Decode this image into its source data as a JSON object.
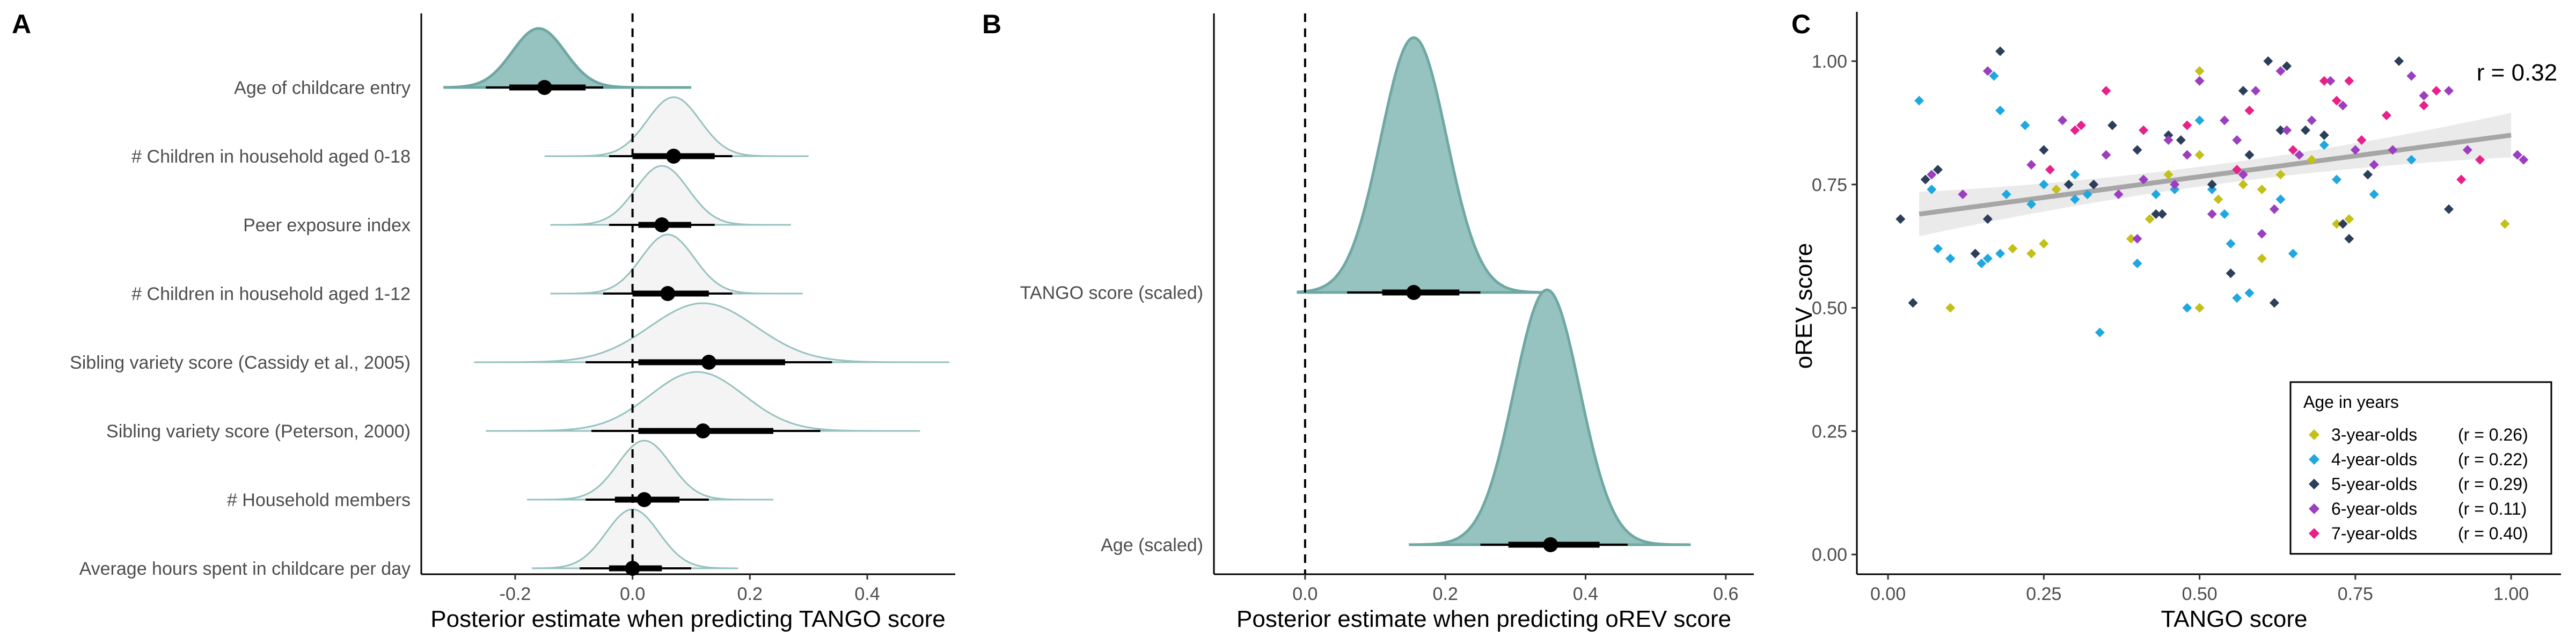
{
  "chart_data": [
    {
      "panel": "A",
      "type": "density-interval",
      "xlabel": "Posterior estimate when predicting TANGO score",
      "xlim": [
        -0.36,
        0.55
      ],
      "xticks": [
        -0.2,
        0.0,
        0.2,
        0.4
      ],
      "xtick_labels": [
        "-0.2",
        "0.0",
        "0.2",
        "0.4"
      ],
      "reference_line": 0,
      "rows": [
        {
          "label": "Age of childcare entry",
          "mean": -0.16,
          "sd": 0.045,
          "point": -0.15,
          "q66": [
            -0.21,
            -0.08
          ],
          "q95": [
            -0.25,
            -0.05
          ],
          "x_range": [
            -0.32,
            0.1
          ],
          "significant": true
        },
        {
          "label": "# Children in household aged 0-18",
          "mean": 0.07,
          "sd": 0.045,
          "point": 0.07,
          "q66": [
            0.0,
            0.14
          ],
          "q95": [
            -0.04,
            0.17
          ],
          "x_range": [
            -0.15,
            0.3
          ],
          "significant": false
        },
        {
          "label": "Peer exposure index",
          "mean": 0.05,
          "sd": 0.045,
          "point": 0.05,
          "q66": [
            0.01,
            0.1
          ],
          "q95": [
            -0.04,
            0.14
          ],
          "x_range": [
            -0.14,
            0.27
          ],
          "significant": false
        },
        {
          "label": "# Children in household aged 1-12",
          "mean": 0.06,
          "sd": 0.045,
          "point": 0.06,
          "q66": [
            0.0,
            0.13
          ],
          "q95": [
            -0.05,
            0.17
          ],
          "x_range": [
            -0.14,
            0.29
          ],
          "significant": false
        },
        {
          "label": "Sibling variety score (Cassidy et al., 2005)",
          "mean": 0.12,
          "sd": 0.09,
          "point": 0.13,
          "q66": [
            0.01,
            0.26
          ],
          "q95": [
            -0.08,
            0.34
          ],
          "x_range": [
            -0.27,
            0.54
          ],
          "significant": false
        },
        {
          "label": "Sibling variety score (Peterson, 2000)",
          "mean": 0.11,
          "sd": 0.08,
          "point": 0.12,
          "q66": [
            0.01,
            0.24
          ],
          "q95": [
            -0.07,
            0.32
          ],
          "x_range": [
            -0.25,
            0.49
          ],
          "significant": false
        },
        {
          "label": "# Household members",
          "mean": 0.02,
          "sd": 0.045,
          "point": 0.02,
          "q66": [
            -0.03,
            0.08
          ],
          "q95": [
            -0.08,
            0.13
          ],
          "x_range": [
            -0.18,
            0.24
          ],
          "significant": false
        },
        {
          "label": "Average hours spent in childcare per day",
          "mean": 0.0,
          "sd": 0.045,
          "point": 0.0,
          "q66": [
            -0.04,
            0.05
          ],
          "q95": [
            -0.09,
            0.1
          ],
          "x_range": [
            -0.17,
            0.18
          ],
          "significant": false
        }
      ]
    },
    {
      "panel": "B",
      "type": "density-interval",
      "xlabel": "Posterior estimate when predicting oREV score",
      "xlim": [
        -0.13,
        0.64
      ],
      "xticks": [
        0.0,
        0.2,
        0.4,
        0.6
      ],
      "xtick_labels": [
        "0.0",
        "0.2",
        "0.4",
        "0.6"
      ],
      "reference_line": 0,
      "rows": [
        {
          "label": "TANGO score (scaled)",
          "mean": 0.155,
          "sd": 0.047,
          "point": 0.155,
          "q66": [
            0.11,
            0.22
          ],
          "q95": [
            0.06,
            0.25
          ],
          "x_range": [
            -0.01,
            0.35
          ],
          "significant": true
        },
        {
          "label": "Age (scaled)",
          "mean": 0.345,
          "sd": 0.047,
          "point": 0.35,
          "q66": [
            0.29,
            0.42
          ],
          "q95": [
            0.25,
            0.46
          ],
          "x_range": [
            0.15,
            0.55
          ],
          "significant": true
        }
      ]
    },
    {
      "panel": "C",
      "type": "scatter",
      "xlabel": "TANGO score",
      "ylabel": "oREV score",
      "xlim": [
        -0.05,
        1.08
      ],
      "ylim": [
        -0.04,
        1.1
      ],
      "xticks": [
        0.0,
        0.25,
        0.5,
        0.75,
        1.0
      ],
      "xtick_labels": [
        "0.00",
        "0.25",
        "0.50",
        "0.75",
        "1.00"
      ],
      "yticks": [
        0.0,
        0.25,
        0.5,
        0.75,
        1.0
      ],
      "ytick_labels": [
        "0.00",
        "0.25",
        "0.50",
        "0.75",
        "1.00"
      ],
      "overall_r_label": "r = 0.32",
      "regression": {
        "x0": 0.05,
        "y0": 0.69,
        "x1": 1.0,
        "y1": 0.85,
        "band_halfwidth_ends": 0.045,
        "band_halfwidth_mid": 0.02
      },
      "legend": {
        "title": "Age in years",
        "position": "bottom-right",
        "entries": [
          {
            "label": "3-year-olds",
            "r_label": "(r = 0.26)",
            "color": "#c3c01a"
          },
          {
            "label": "4-year-olds",
            "r_label": "(r = 0.22)",
            "color": "#1fa8e0"
          },
          {
            "label": "5-year-olds",
            "r_label": "(r = 0.29)",
            "color": "#2b3e5a"
          },
          {
            "label": "6-year-olds",
            "r_label": "(r = 0.11)",
            "color": "#9b3fc0"
          },
          {
            "label": "7-year-olds",
            "r_label": "(r = 0.40)",
            "color": "#e8208a"
          }
        ]
      },
      "series": [
        {
          "name": "3-year-olds",
          "points": [
            [
              0.1,
              0.5
            ],
            [
              0.2,
              0.62
            ],
            [
              0.23,
              0.61
            ],
            [
              0.25,
              0.63
            ],
            [
              0.27,
              0.74
            ],
            [
              0.39,
              0.64
            ],
            [
              0.42,
              0.68
            ],
            [
              0.5,
              0.98
            ],
            [
              0.5,
              0.81
            ],
            [
              0.53,
              0.72
            ],
            [
              0.5,
              0.5
            ],
            [
              0.6,
              0.6
            ],
            [
              0.68,
              0.8
            ],
            [
              0.72,
              0.67
            ],
            [
              0.74,
              0.68
            ],
            [
              0.99,
              0.67
            ],
            [
              0.6,
              0.74
            ],
            [
              0.57,
              0.75
            ],
            [
              0.63,
              0.77
            ],
            [
              0.45,
              0.77
            ]
          ]
        },
        {
          "name": "4-year-olds",
          "points": [
            [
              0.05,
              0.92
            ],
            [
              0.08,
              0.62
            ],
            [
              0.1,
              0.6
            ],
            [
              0.07,
              0.74
            ],
            [
              0.15,
              0.59
            ],
            [
              0.16,
              0.6
            ],
            [
              0.18,
              0.61
            ],
            [
              0.19,
              0.73
            ],
            [
              0.22,
              0.87
            ],
            [
              0.23,
              0.71
            ],
            [
              0.18,
              0.9
            ],
            [
              0.25,
              0.75
            ],
            [
              0.28,
              0.88
            ],
            [
              0.3,
              0.77
            ],
            [
              0.3,
              0.72
            ],
            [
              0.32,
              0.73
            ],
            [
              0.34,
              0.45
            ],
            [
              0.4,
              0.59
            ],
            [
              0.43,
              0.73
            ],
            [
              0.46,
              0.74
            ],
            [
              0.48,
              0.5
            ],
            [
              0.5,
              0.88
            ],
            [
              0.52,
              0.74
            ],
            [
              0.54,
              0.69
            ],
            [
              0.55,
              0.63
            ],
            [
              0.58,
              0.53
            ],
            [
              0.56,
              0.52
            ],
            [
              0.63,
              0.72
            ],
            [
              0.65,
              0.61
            ],
            [
              0.7,
              0.83
            ],
            [
              0.72,
              0.76
            ],
            [
              0.78,
              0.73
            ],
            [
              0.84,
              0.8
            ],
            [
              0.17,
              0.97
            ]
          ]
        },
        {
          "name": "5-year-olds",
          "points": [
            [
              0.02,
              0.68
            ],
            [
              0.04,
              0.51
            ],
            [
              0.06,
              0.76
            ],
            [
              0.08,
              0.78
            ],
            [
              0.14,
              0.61
            ],
            [
              0.16,
              0.68
            ],
            [
              0.18,
              1.02
            ],
            [
              0.25,
              0.82
            ],
            [
              0.29,
              0.75
            ],
            [
              0.33,
              0.75
            ],
            [
              0.36,
              0.87
            ],
            [
              0.4,
              0.82
            ],
            [
              0.43,
              0.69
            ],
            [
              0.44,
              0.69
            ],
            [
              0.45,
              0.85
            ],
            [
              0.47,
              0.84
            ],
            [
              0.5,
              0.96
            ],
            [
              0.52,
              0.75
            ],
            [
              0.55,
              0.57
            ],
            [
              0.57,
              0.94
            ],
            [
              0.58,
              0.81
            ],
            [
              0.61,
              1.0
            ],
            [
              0.62,
              0.51
            ],
            [
              0.63,
              0.86
            ],
            [
              0.64,
              0.99
            ],
            [
              0.67,
              0.86
            ],
            [
              0.7,
              0.85
            ],
            [
              0.73,
              0.67
            ],
            [
              0.74,
              0.64
            ],
            [
              0.77,
              0.77
            ],
            [
              0.82,
              1.0
            ],
            [
              0.9,
              0.7
            ]
          ]
        },
        {
          "name": "6-year-olds",
          "points": [
            [
              0.07,
              0.77
            ],
            [
              0.12,
              0.73
            ],
            [
              0.16,
              0.98
            ],
            [
              0.23,
              0.79
            ],
            [
              0.28,
              0.88
            ],
            [
              0.35,
              0.81
            ],
            [
              0.37,
              0.73
            ],
            [
              0.4,
              0.64
            ],
            [
              0.41,
              0.76
            ],
            [
              0.45,
              0.84
            ],
            [
              0.46,
              0.75
            ],
            [
              0.48,
              0.81
            ],
            [
              0.5,
              0.96
            ],
            [
              0.52,
              0.69
            ],
            [
              0.54,
              0.88
            ],
            [
              0.56,
              0.84
            ],
            [
              0.57,
              0.77
            ],
            [
              0.59,
              0.94
            ],
            [
              0.6,
              0.65
            ],
            [
              0.62,
              0.7
            ],
            [
              0.63,
              0.98
            ],
            [
              0.64,
              0.86
            ],
            [
              0.66,
              0.81
            ],
            [
              0.68,
              0.88
            ],
            [
              0.71,
              0.96
            ],
            [
              0.73,
              0.91
            ],
            [
              0.75,
              0.82
            ],
            [
              0.78,
              0.79
            ],
            [
              0.81,
              0.82
            ],
            [
              0.84,
              0.97
            ],
            [
              0.86,
              0.93
            ],
            [
              0.9,
              0.94
            ],
            [
              0.93,
              0.82
            ],
            [
              1.01,
              0.81
            ],
            [
              1.02,
              0.8
            ]
          ]
        },
        {
          "name": "7-year-olds",
          "points": [
            [
              0.26,
              0.78
            ],
            [
              0.3,
              0.86
            ],
            [
              0.31,
              0.87
            ],
            [
              0.35,
              0.94
            ],
            [
              0.41,
              0.86
            ],
            [
              0.48,
              0.87
            ],
            [
              0.56,
              0.78
            ],
            [
              0.58,
              0.9
            ],
            [
              0.65,
              0.82
            ],
            [
              0.7,
              0.96
            ],
            [
              0.72,
              0.92
            ],
            [
              0.74,
              0.96
            ],
            [
              0.76,
              0.84
            ],
            [
              0.8,
              0.89
            ],
            [
              0.86,
              0.91
            ],
            [
              0.88,
              0.94
            ],
            [
              0.92,
              0.76
            ],
            [
              0.95,
              0.8
            ]
          ]
        }
      ]
    }
  ]
}
